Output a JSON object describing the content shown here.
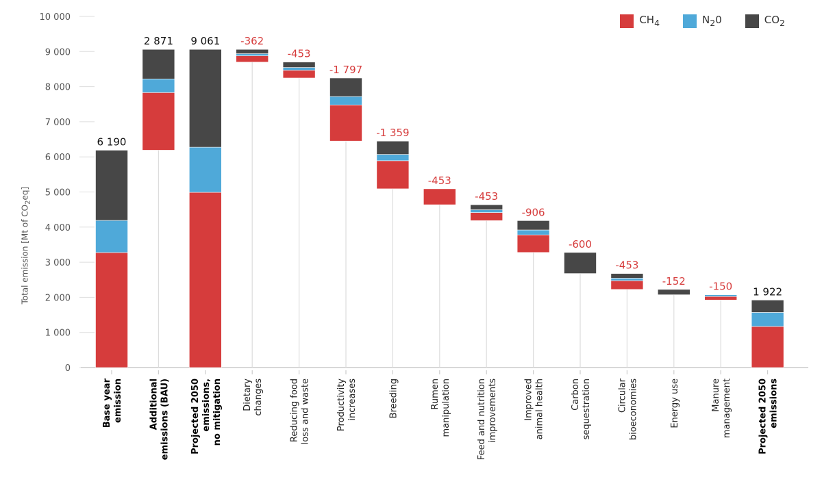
{
  "chart_data": {
    "type": "bar",
    "subtype": "stacked-waterfall",
    "ylabel": "Total emission [Mt of CO2eq]",
    "ylabel_parts": {
      "pre": "Total emission [Mt of CO",
      "sub": "2",
      "post": "eq]"
    },
    "ylim": [
      0,
      10000
    ],
    "yticks": [
      0,
      1000,
      2000,
      3000,
      4000,
      5000,
      6000,
      7000,
      8000,
      9000,
      10000
    ],
    "ytick_labels": [
      "0",
      "1 000",
      "2 000",
      "3 000",
      "4 000",
      "5 000",
      "6 000",
      "7 000",
      "8 000",
      "9 000",
      "10 000"
    ],
    "legend": [
      {
        "name": "CH4",
        "base": "CH",
        "sub": "4",
        "color": "#d63c3c"
      },
      {
        "name": "N2O",
        "base": "N",
        "sub": "2",
        "post": "0",
        "color": "#4fa9d9"
      },
      {
        "name": "CO2",
        "base": "CO",
        "sub": "2",
        "color": "#474747"
      }
    ],
    "legend_position": "top-right",
    "categories": [
      {
        "lines": [
          "Base year",
          "emission"
        ],
        "bold": true,
        "kind": "total",
        "label": "6 190",
        "base": 0,
        "ch4": 3275,
        "n2o": 915,
        "co2": 2000
      },
      {
        "lines": [
          "Additional",
          "emissions (BAU)"
        ],
        "bold": true,
        "kind": "increase",
        "label": "2 871",
        "base": 6190,
        "ch4": 1640,
        "n2o": 390,
        "co2": 841
      },
      {
        "lines": [
          "Projected 2050",
          "emissions,",
          "no mitigation"
        ],
        "bold": true,
        "kind": "total",
        "label": "9 061",
        "base": 0,
        "ch4": 4990,
        "n2o": 1285,
        "co2": 2786
      },
      {
        "lines": [
          "Dietary",
          "changes"
        ],
        "bold": false,
        "kind": "decrease",
        "label": "-362",
        "base": 8699,
        "ch4": 180,
        "n2o": 60,
        "co2": 122
      },
      {
        "lines": [
          "Reducing food",
          "loss and waste"
        ],
        "bold": false,
        "kind": "decrease",
        "label": "-453",
        "base": 8246,
        "ch4": 220,
        "n2o": 80,
        "co2": 153
      },
      {
        "lines": [
          "Productivity",
          "increases"
        ],
        "bold": false,
        "kind": "decrease",
        "label": "-1 797",
        "base": 6449,
        "ch4": 1030,
        "n2o": 240,
        "co2": 527
      },
      {
        "lines": [
          "Breeding"
        ],
        "bold": false,
        "kind": "decrease",
        "label": "-1 359",
        "base": 5090,
        "ch4": 800,
        "n2o": 180,
        "co2": 379
      },
      {
        "lines": [
          "Rumen",
          "manipulation"
        ],
        "bold": false,
        "kind": "decrease",
        "label": "-453",
        "base": 4637,
        "ch4": 453,
        "n2o": 0,
        "co2": 0
      },
      {
        "lines": [
          "Feed and nutrition",
          "improvements"
        ],
        "bold": false,
        "kind": "decrease",
        "label": "-453",
        "base": 4184,
        "ch4": 230,
        "n2o": 80,
        "co2": 143
      },
      {
        "lines": [
          "Improved",
          "animal health"
        ],
        "bold": false,
        "kind": "decrease",
        "label": "-906",
        "base": 3278,
        "ch4": 500,
        "n2o": 140,
        "co2": 266
      },
      {
        "lines": [
          "Carbon",
          "sequestration"
        ],
        "bold": false,
        "kind": "decrease",
        "label": "-600",
        "base": 2678,
        "ch4": 0,
        "n2o": 0,
        "co2": 600
      },
      {
        "lines": [
          "Circular",
          "bioeconomies"
        ],
        "bold": false,
        "kind": "decrease",
        "label": "-453",
        "base": 2225,
        "ch4": 250,
        "n2o": 70,
        "co2": 133
      },
      {
        "lines": [
          "Energy use"
        ],
        "bold": false,
        "kind": "decrease",
        "label": "-152",
        "base": 2073,
        "ch4": 0,
        "n2o": 0,
        "co2": 152
      },
      {
        "lines": [
          "Manure",
          "management"
        ],
        "bold": false,
        "kind": "decrease",
        "label": "-150",
        "base": 1923,
        "ch4": 100,
        "n2o": 50,
        "co2": 0
      },
      {
        "lines": [
          "Projected 2050",
          "emissions"
        ],
        "bold": true,
        "kind": "total",
        "label": "1 922",
        "base": 0,
        "ch4": 1170,
        "n2o": 400,
        "co2": 352
      }
    ]
  }
}
